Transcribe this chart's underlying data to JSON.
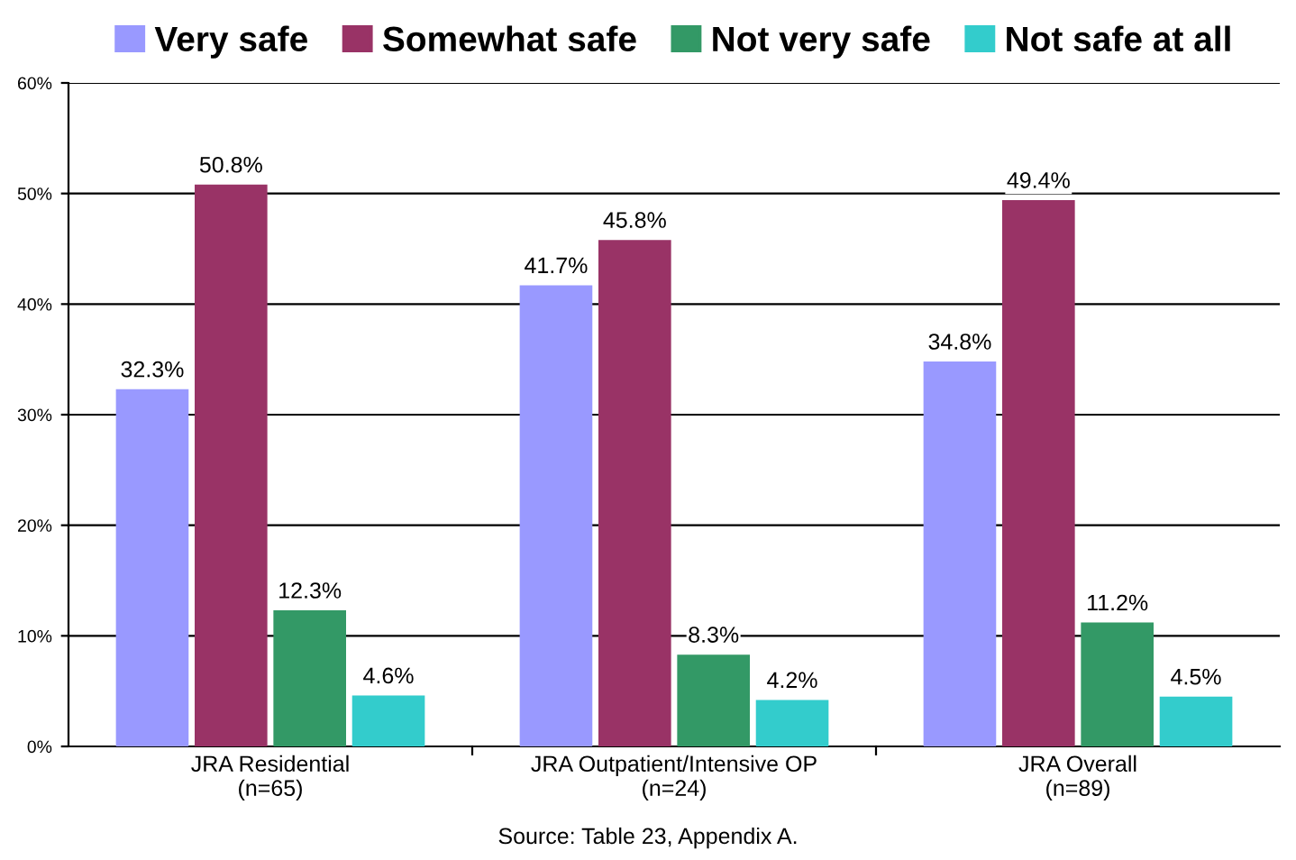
{
  "chart_data": {
    "type": "bar",
    "categories": [
      "JRA Residential\n(n=65)",
      "JRA Outpatient/Intensive OP\n(n=24)",
      "JRA Overall\n(n=89)"
    ],
    "series": [
      {
        "name": "Very safe",
        "color": "#9999ff",
        "values": [
          32.3,
          41.7,
          34.8
        ],
        "value_labels": [
          "32.3%",
          "41.7%",
          "34.8%"
        ]
      },
      {
        "name": "Somewhat safe",
        "color": "#993366",
        "values": [
          50.8,
          45.8,
          49.4
        ],
        "value_labels": [
          "50.8%",
          "45.8%",
          "49.4%"
        ]
      },
      {
        "name": "Not very safe",
        "color": "#339966",
        "values": [
          12.3,
          8.3,
          11.2
        ],
        "value_labels": [
          "12.3%",
          "8.3%",
          "11.2%"
        ]
      },
      {
        "name": "Not safe at all",
        "color": "#33cccc",
        "values": [
          4.6,
          4.2,
          4.5
        ],
        "value_labels": [
          "4.6%",
          "4.2%",
          "4.5%"
        ]
      }
    ],
    "ylim": [
      0,
      60
    ],
    "yticks": [
      {
        "value": 0,
        "label": "0%"
      },
      {
        "value": 10,
        "label": "10%"
      },
      {
        "value": 20,
        "label": "20%"
      },
      {
        "value": 30,
        "label": "30%"
      },
      {
        "value": 40,
        "label": "40%"
      },
      {
        "value": 50,
        "label": "50%"
      },
      {
        "value": 60,
        "label": "60%"
      }
    ],
    "grid": "y",
    "legend": "top",
    "annotations": [
      "Source: Table 23, Appendix A."
    ]
  }
}
